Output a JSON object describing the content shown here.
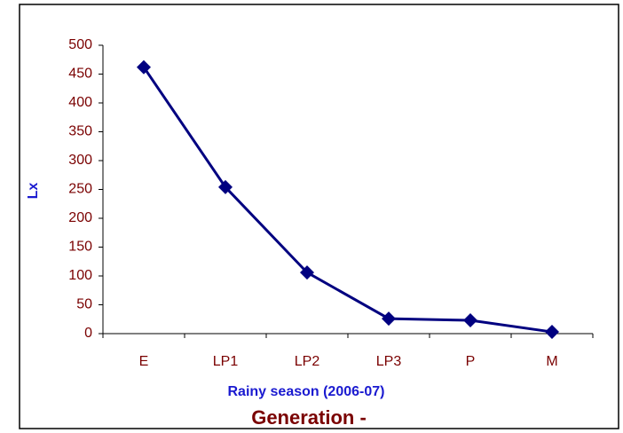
{
  "chart_data": {
    "type": "line",
    "ylabel": "Lx",
    "xlabel": "Rainy season (2006-07)",
    "annotation": "Generation -",
    "categories": [
      "E",
      "LP1",
      "LP2",
      "LP3",
      "P",
      "M"
    ],
    "series": [
      {
        "name": "Lx",
        "color": "#000080",
        "values": [
          462,
          254,
          106,
          26,
          23,
          3
        ]
      }
    ],
    "ylim": [
      0,
      500
    ],
    "yticks": [
      0,
      50,
      100,
      150,
      200,
      250,
      300,
      350,
      400,
      450,
      500
    ],
    "grid": false,
    "legend": false
  }
}
